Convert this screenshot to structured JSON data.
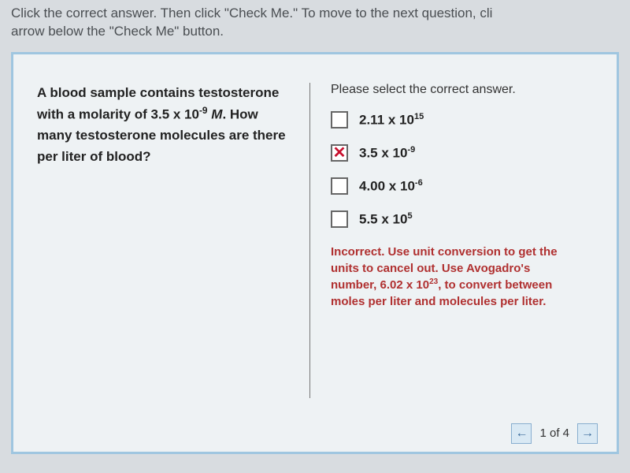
{
  "instructions": {
    "line1": "Click the correct answer. Then click \"Check Me.\" To move to the next question, cli",
    "line2": "arrow below the \"Check Me\" button."
  },
  "question": {
    "pre": "A blood sample contains testosterone with a molarity of 3.5 x 10",
    "exp1": "-9",
    "mid": " ",
    "ital": "M",
    "post": ". How many testosterone molecules are there per liter of blood?"
  },
  "prompt": "Please select the correct answer.",
  "options": [
    {
      "pre": "2.11 x 10",
      "exp": "15",
      "selected": false,
      "wrong": false
    },
    {
      "pre": "3.5 x 10",
      "exp": "-9",
      "selected": true,
      "wrong": true
    },
    {
      "pre": "4.00 x 10",
      "exp": "-6",
      "selected": false,
      "wrong": false
    },
    {
      "pre": "5.5 x 10",
      "exp": "5",
      "selected": false,
      "wrong": false
    }
  ],
  "feedback": {
    "pre": "Incorrect. Use unit conversion to get the units to cancel out. Use Avogadro's number, 6.02 x 10",
    "exp": "23",
    "post": ", to convert between moles per liter and molecules per liter."
  },
  "nav": {
    "prev_glyph": "←",
    "next_glyph": "→",
    "counter": "1 of 4"
  },
  "colors": {
    "frame_border": "#9fc6e0",
    "frame_bg": "#eef2f4",
    "body_bg": "#d8dce0",
    "feedback_color": "#b03030",
    "wrong_mark": "#c8102e"
  }
}
